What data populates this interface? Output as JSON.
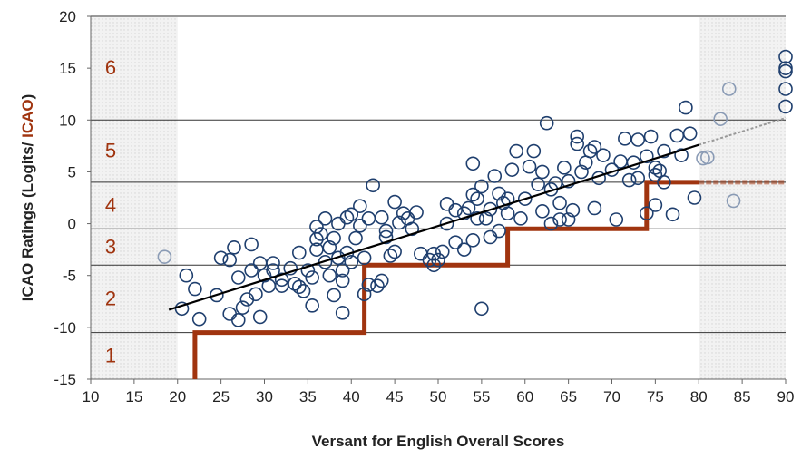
{
  "chart_data": {
    "type": "scatter",
    "x_label": "Versant for English Overall Scores",
    "y_label_parts": [
      "ICAO Ratings (Logits/ ",
      "ICAO",
      ")"
    ],
    "xlim": [
      10,
      90
    ],
    "xticks": [
      10,
      15,
      20,
      25,
      30,
      35,
      40,
      45,
      50,
      55,
      60,
      65,
      70,
      75,
      80,
      85,
      90
    ],
    "ylim": [
      -15,
      20
    ],
    "yticks": [
      -15,
      -10,
      -5,
      0,
      5,
      10,
      15,
      20
    ],
    "shaded_ranges": [
      [
        10,
        20
      ],
      [
        80,
        90
      ]
    ],
    "level_lines": [
      -10.5,
      -4,
      -0.5,
      4,
      10
    ],
    "level_labels": [
      "1",
      "2",
      "3",
      "4",
      "5",
      "6"
    ],
    "point_color": "#1f3f6e",
    "faded_point_color": "#8a9bb5",
    "step_color": "#a0340f",
    "step_line": {
      "x": [
        22,
        22,
        41.5,
        41.5,
        58,
        58,
        74,
        74,
        80
      ],
      "y": [
        -15,
        -10.5,
        -10.5,
        -4,
        -4,
        -0.5,
        -0.5,
        4,
        4
      ]
    },
    "step_extension": {
      "x": [
        80,
        90
      ],
      "y": [
        4,
        4
      ]
    },
    "trend_line": {
      "x": [
        19,
        80
      ],
      "y": [
        -8.3,
        7.6
      ]
    },
    "trend_extension": {
      "x": [
        80,
        90
      ],
      "y": [
        7.6,
        10.2
      ]
    },
    "x": [
      18.5,
      20.5,
      21,
      22,
      22.5,
      24.5,
      25,
      26,
      26.5,
      26,
      27,
      27,
      27.5,
      28,
      28.5,
      28.5,
      29,
      29.5,
      29.5,
      30,
      30.5,
      31,
      31,
      32,
      32,
      33,
      33.5,
      34,
      34,
      34.5,
      35,
      35.5,
      35.5,
      36,
      36,
      36,
      36.5,
      37,
      37,
      37.5,
      37.5,
      38,
      38,
      38.5,
      38.5,
      39,
      39,
      39,
      39.5,
      39.5,
      40,
      40,
      40.5,
      41,
      41,
      41.5,
      41.5,
      42,
      42,
      42.5,
      43,
      43.5,
      43.5,
      44,
      44,
      44.5,
      45,
      45,
      45.5,
      46,
      46.5,
      47,
      47.5,
      48,
      49,
      49.5,
      49.5,
      50,
      50.5,
      51,
      51,
      52,
      52,
      53,
      53,
      53.5,
      54,
      54,
      54,
      54.5,
      54.5,
      55,
      55,
      55.5,
      56,
      56,
      56.5,
      57,
      57,
      57.5,
      58,
      58,
      58.5,
      59,
      59.5,
      60,
      60.5,
      61,
      61.5,
      62,
      62,
      62.5,
      63,
      63,
      63.5,
      64,
      64,
      64.5,
      65,
      65,
      65.5,
      66,
      66,
      66.5,
      67,
      67.5,
      68,
      68,
      68.5,
      69,
      70,
      70.5,
      71,
      71.5,
      72,
      72.5,
      73,
      73,
      74,
      74,
      74.5,
      75,
      75,
      75,
      75.5,
      76,
      76,
      77,
      77.5,
      78,
      78.5,
      79,
      79.5,
      80.5,
      81,
      82.5,
      83.5,
      84,
      90,
      90,
      90,
      90,
      90
    ],
    "y": [
      -3.2,
      -8.2,
      -5,
      -6.3,
      -9.2,
      -6.9,
      -3.3,
      -3.5,
      -2.3,
      -8.7,
      -9.3,
      -5.2,
      -8.1,
      -7.3,
      -2,
      -4.5,
      -6.8,
      -3.8,
      -9,
      -5,
      -6,
      -3.8,
      -4.5,
      -5.4,
      -6,
      -4.3,
      -5.8,
      -6.1,
      -2.8,
      -6.5,
      -4.5,
      -5.2,
      -7.9,
      -2.5,
      -1.5,
      -0.3,
      -1,
      0.5,
      -3.7,
      -5,
      -2.3,
      -1.4,
      -6.9,
      0,
      -3.3,
      -4.5,
      -5.5,
      -8.6,
      0.6,
      -2.8,
      -3.7,
      0.9,
      -1.4,
      -0.2,
      1.7,
      -3.3,
      -6.8,
      0.5,
      -5.9,
      3.7,
      -6,
      -5.5,
      0.6,
      -1.3,
      -0.7,
      -3.1,
      2.1,
      -2.7,
      0.1,
      1,
      0.5,
      -0.5,
      1.1,
      -2.9,
      -3.5,
      -2.9,
      -4,
      -3.5,
      -2.7,
      0,
      1.9,
      -1.8,
      1.3,
      -2.5,
      1,
      1.5,
      -1.6,
      5.8,
      2.8,
      0.5,
      2.4,
      3.6,
      -8.2,
      0.5,
      1.4,
      -1.3,
      4.6,
      -0.7,
      2.9,
      2,
      1,
      2.4,
      5.2,
      7,
      0.5,
      2.4,
      5.5,
      7,
      3.8,
      1.2,
      5,
      9.7,
      3.3,
      0,
      3.9,
      0.4,
      2,
      5.4,
      4.1,
      0.4,
      1.3,
      7.7,
      8.4,
      5,
      5.9,
      7,
      7.4,
      1.5,
      4.4,
      6.6,
      5.2,
      0.4,
      6,
      8.2,
      4.2,
      5.9,
      4.4,
      8.1,
      6.5,
      1,
      8.4,
      4.7,
      5.4,
      1.8,
      5.1,
      7,
      4,
      0.9,
      8.5,
      6.6,
      11.2,
      8.7,
      2.5,
      6.3,
      6.4,
      10.1,
      13,
      2.2,
      16.1,
      15,
      14.7,
      13,
      11.3
    ]
  }
}
